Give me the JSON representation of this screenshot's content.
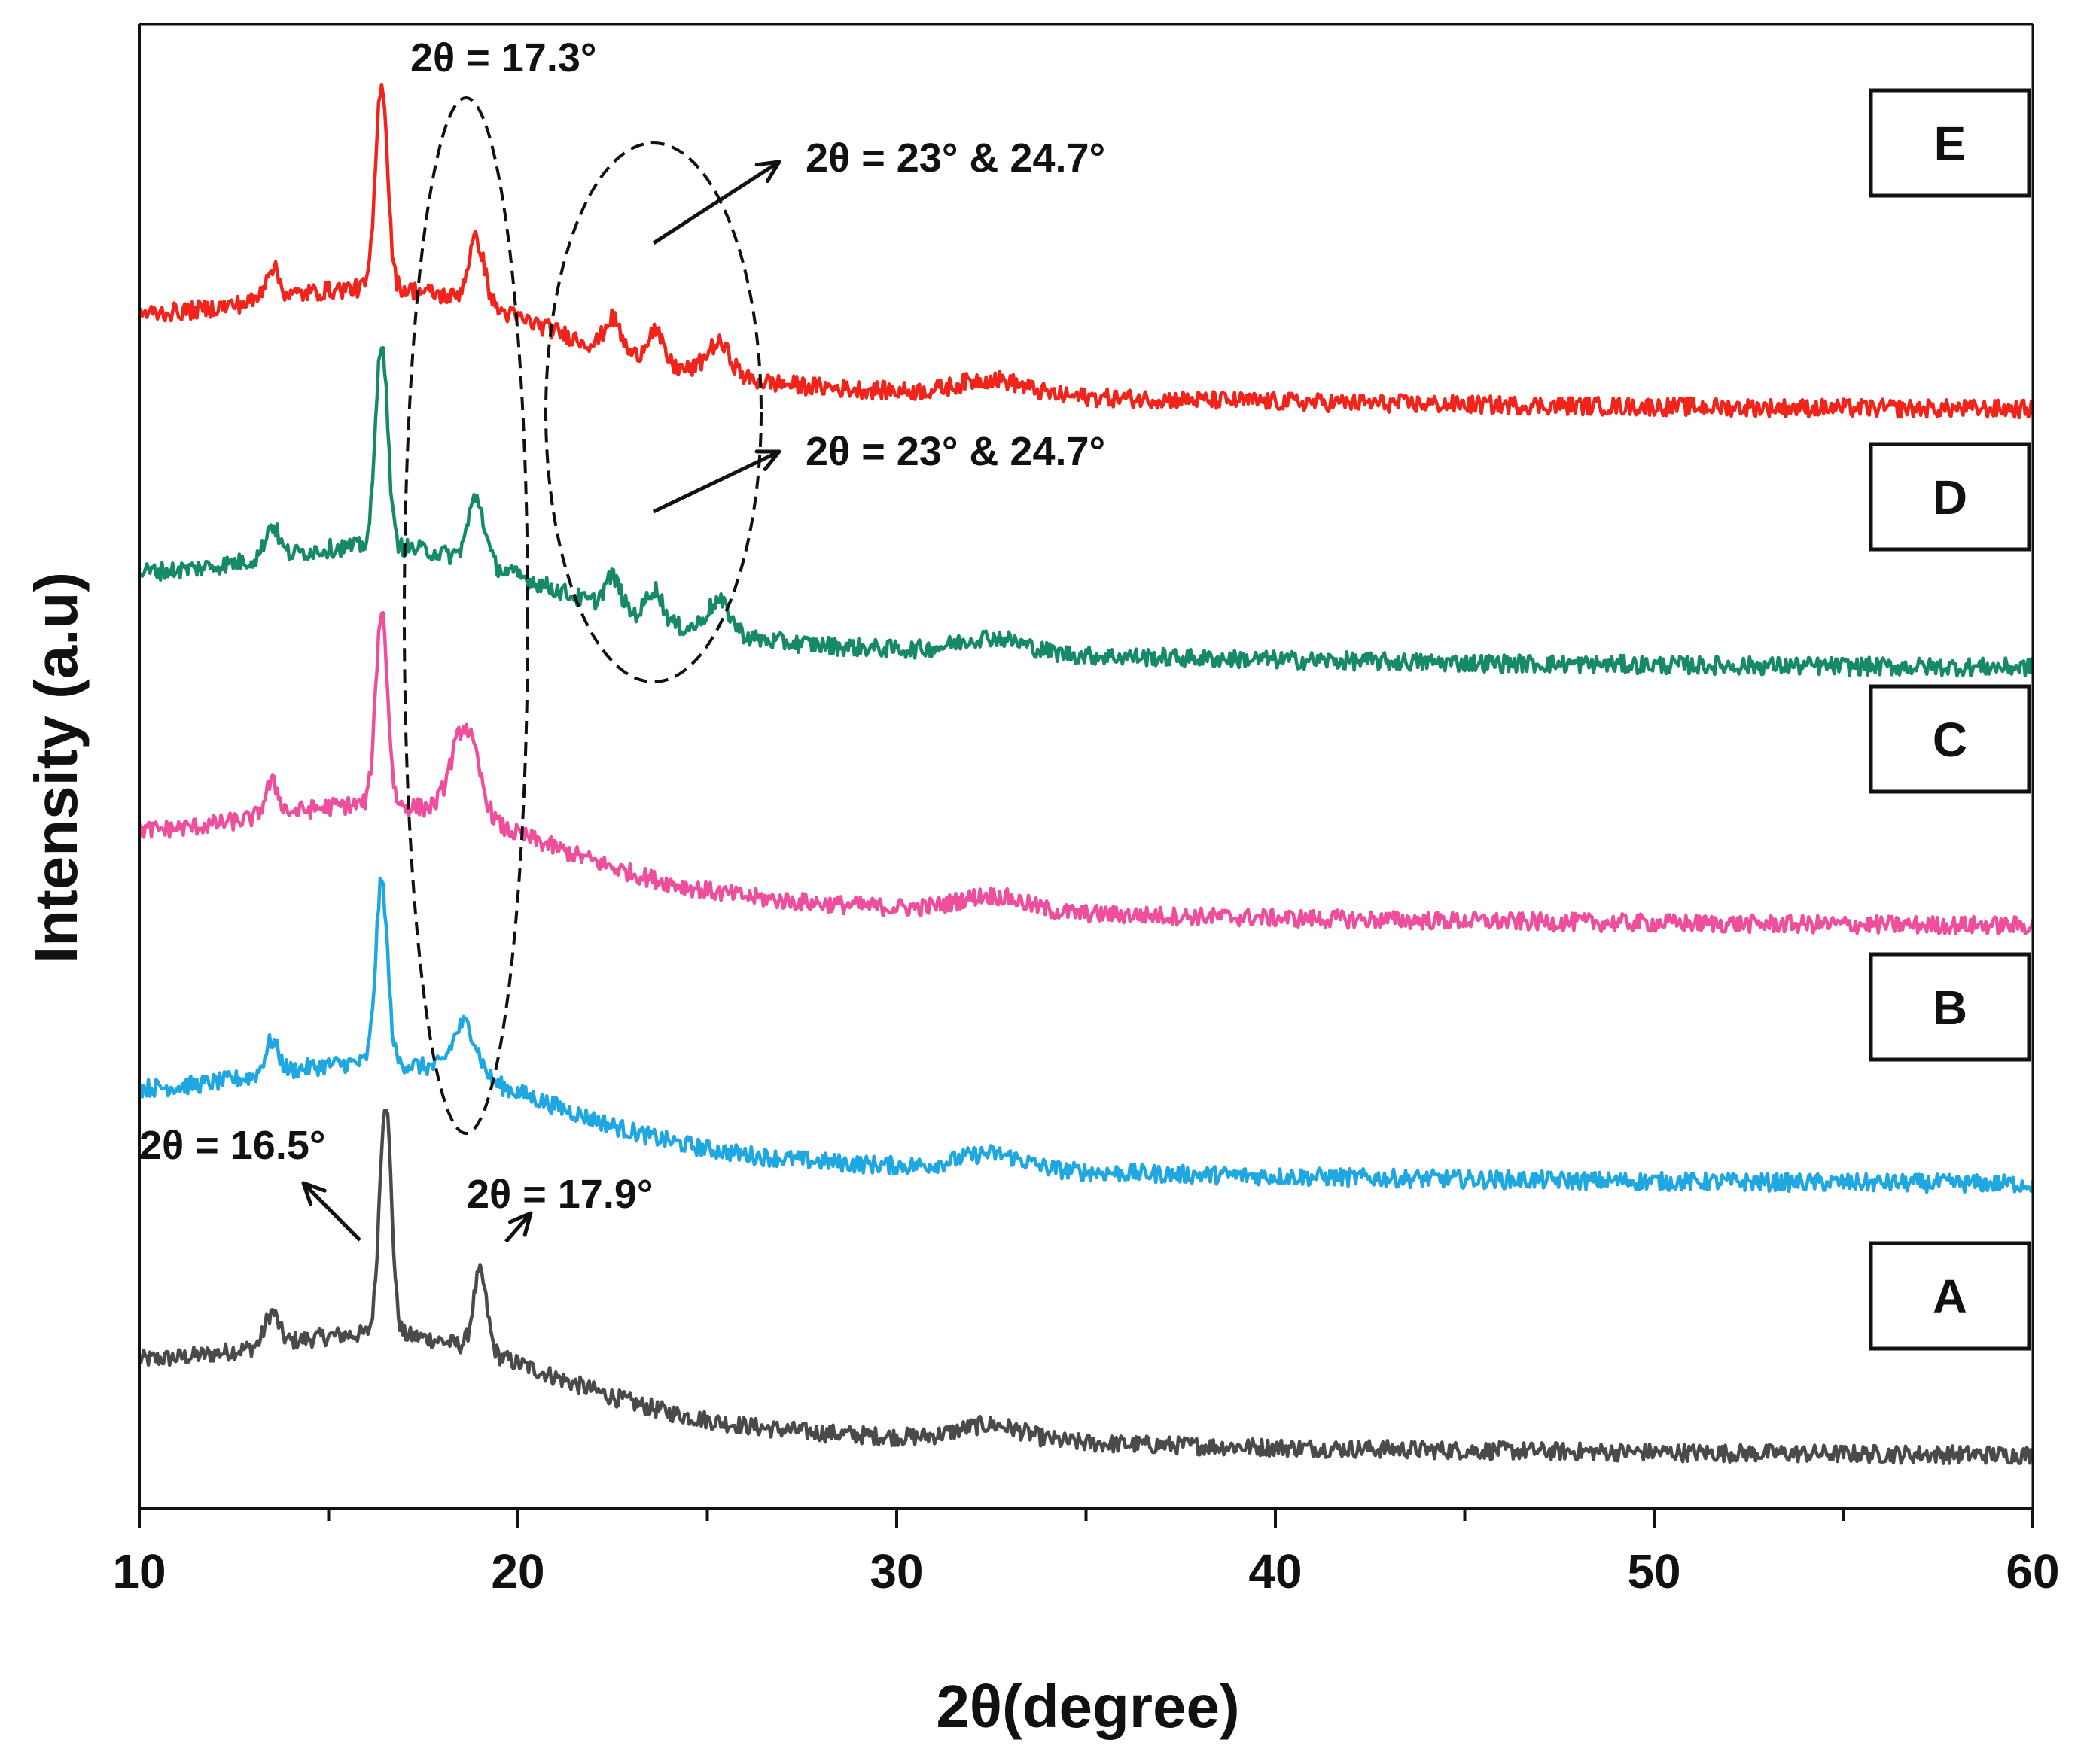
{
  "chart_data": {
    "type": "line",
    "title": "",
    "xlabel": "2θ(degree)",
    "ylabel": "Intensity (a.u)",
    "xlim": [
      10,
      60
    ],
    "ylim": [
      0,
      115
    ],
    "x_ticks": [
      10,
      20,
      30,
      40,
      50,
      60
    ],
    "x_tick_labels": [
      "10",
      "20",
      "30",
      "40",
      "50",
      "60"
    ],
    "y_ticks_shown": false,
    "grid": false,
    "legend": "labeled boxes at right",
    "series": [
      {
        "name": "A",
        "color": "#4a4a4a",
        "offset": 4,
        "noise": 0.7,
        "peaks": [
          {
            "x": 13.5,
            "h": 2.5,
            "w": 0.25
          },
          {
            "x": 16.5,
            "h": 18,
            "w": 0.22
          },
          {
            "x": 19.0,
            "h": 6,
            "w": 0.25
          }
        ]
      },
      {
        "name": "B",
        "color": "#1ea7e1",
        "offset": 25,
        "noise": 0.7,
        "peaks": [
          {
            "x": 13.5,
            "h": 2.5,
            "w": 0.25
          },
          {
            "x": 16.4,
            "h": 14,
            "w": 0.22
          },
          {
            "x": 18.6,
            "h": 4,
            "w": 0.45
          }
        ]
      },
      {
        "name": "C",
        "color": "#ee4e9b",
        "offset": 45,
        "noise": 0.7,
        "peaks": [
          {
            "x": 13.5,
            "h": 2.5,
            "w": 0.25
          },
          {
            "x": 16.4,
            "h": 15,
            "w": 0.22
          },
          {
            "x": 18.6,
            "h": 7,
            "w": 0.5
          }
        ]
      },
      {
        "name": "D",
        "color": "#168a68",
        "offset": 65,
        "noise": 0.7,
        "peaks": [
          {
            "x": 13.5,
            "h": 2.5,
            "w": 0.25
          },
          {
            "x": 16.4,
            "h": 16,
            "w": 0.22
          },
          {
            "x": 18.9,
            "h": 5,
            "w": 0.3
          },
          {
            "x": 22.5,
            "h": 2.5,
            "w": 0.3
          },
          {
            "x": 23.6,
            "h": 2.5,
            "w": 0.3
          },
          {
            "x": 25.3,
            "h": 2.5,
            "w": 0.45
          }
        ]
      },
      {
        "name": "E",
        "color": "#f2231a",
        "offset": 85,
        "noise": 0.7,
        "peaks": [
          {
            "x": 13.5,
            "h": 2.5,
            "w": 0.25
          },
          {
            "x": 16.4,
            "h": 16,
            "w": 0.22
          },
          {
            "x": 18.9,
            "h": 5,
            "w": 0.3
          },
          {
            "x": 22.5,
            "h": 2.5,
            "w": 0.3
          },
          {
            "x": 23.6,
            "h": 2.5,
            "w": 0.3
          },
          {
            "x": 25.3,
            "h": 2.5,
            "w": 0.45
          }
        ]
      }
    ],
    "annotations": [
      {
        "text": "2θ = 17.3°"
      },
      {
        "text": "2θ = 23°  & 24.7°"
      },
      {
        "text": "2θ = 23°  & 24.7°"
      },
      {
        "text": "2θ = 16.5°"
      },
      {
        "text": "2θ = 17.9°"
      }
    ]
  }
}
